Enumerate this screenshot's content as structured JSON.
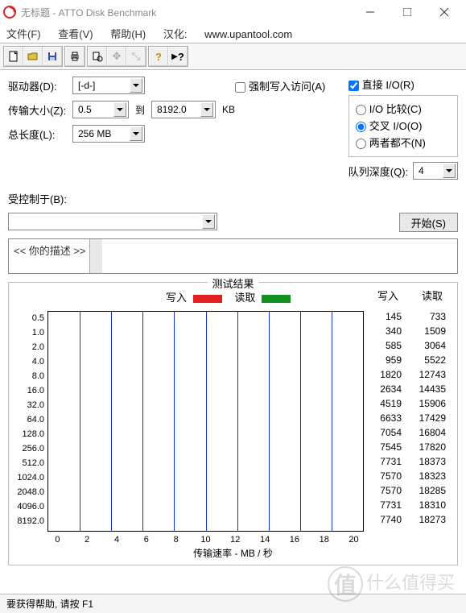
{
  "window": {
    "title": "无标题 - ATTO Disk Benchmark"
  },
  "menu": {
    "file": "文件(F)",
    "view": "查看(V)",
    "help": "帮助(H)",
    "loc": "汉化:",
    "url": "www.upantool.com"
  },
  "controls": {
    "drive_label": "驱动器(D):",
    "drive_value": "[-d-]",
    "size_label": "传输大小(Z):",
    "size_from": "0.5",
    "size_to_label": "到",
    "size_to": "8192.0",
    "size_unit": "KB",
    "len_label": "总长度(L):",
    "len_value": "256 MB",
    "force_label": "强制写入访问(A)",
    "direct_label": "直接 I/O(R)",
    "radio1": "I/O 比较(C)",
    "radio2": "交叉 I/O(O)",
    "radio3": "两者都不(N)",
    "queue_label": "队列深度(Q):",
    "queue_value": "4",
    "controlled_label": "受控制于(B):",
    "start": "开始(S)",
    "desc_placeholder": "<< 你的描述 >>"
  },
  "legend": {
    "write": "写入",
    "read": "读取"
  },
  "chart": {
    "title": "测试结果",
    "axis_title": "传输速率 - MB / 秒",
    "xmax": 20,
    "xticks": [
      0,
      2,
      4,
      6,
      8,
      10,
      12,
      14,
      16,
      18,
      20
    ],
    "write_color": "#e02020",
    "read_color": "#109020",
    "grid_color": "#1030d0",
    "data": [
      {
        "label": "0.5",
        "write": 0.145,
        "read": 0.733,
        "w_txt": "145",
        "r_txt": "733"
      },
      {
        "label": "1.0",
        "write": 0.34,
        "read": 1.509,
        "w_txt": "340",
        "r_txt": "1509"
      },
      {
        "label": "2.0",
        "write": 0.585,
        "read": 3.064,
        "w_txt": "585",
        "r_txt": "3064"
      },
      {
        "label": "4.0",
        "write": 0.959,
        "read": 5.522,
        "w_txt": "959",
        "r_txt": "5522"
      },
      {
        "label": "8.0",
        "write": 1.82,
        "read": 12.743,
        "w_txt": "1820",
        "r_txt": "12743"
      },
      {
        "label": "16.0",
        "write": 2.634,
        "read": 14.435,
        "w_txt": "2634",
        "r_txt": "14435"
      },
      {
        "label": "32.0",
        "write": 4.519,
        "read": 15.906,
        "w_txt": "4519",
        "r_txt": "15906"
      },
      {
        "label": "64.0",
        "write": 6.633,
        "read": 17.429,
        "w_txt": "6633",
        "r_txt": "17429"
      },
      {
        "label": "128.0",
        "write": 7.054,
        "read": 16.804,
        "w_txt": "7054",
        "r_txt": "16804"
      },
      {
        "label": "256.0",
        "write": 7.545,
        "read": 17.82,
        "w_txt": "7545",
        "r_txt": "17820"
      },
      {
        "label": "512.0",
        "write": 7.731,
        "read": 18.373,
        "w_txt": "7731",
        "r_txt": "18373"
      },
      {
        "label": "1024.0",
        "write": 7.57,
        "read": 18.323,
        "w_txt": "7570",
        "r_txt": "18323"
      },
      {
        "label": "2048.0",
        "write": 7.57,
        "read": 18.285,
        "w_txt": "7570",
        "r_txt": "18285"
      },
      {
        "label": "4096.0",
        "write": 7.731,
        "read": 18.31,
        "w_txt": "7731",
        "r_txt": "18310"
      },
      {
        "label": "8192.0",
        "write": 7.74,
        "read": 18.273,
        "w_txt": "7740",
        "r_txt": "18273"
      }
    ]
  },
  "status": "要获得帮助, 请按 F1",
  "watermark": "什么值得买"
}
